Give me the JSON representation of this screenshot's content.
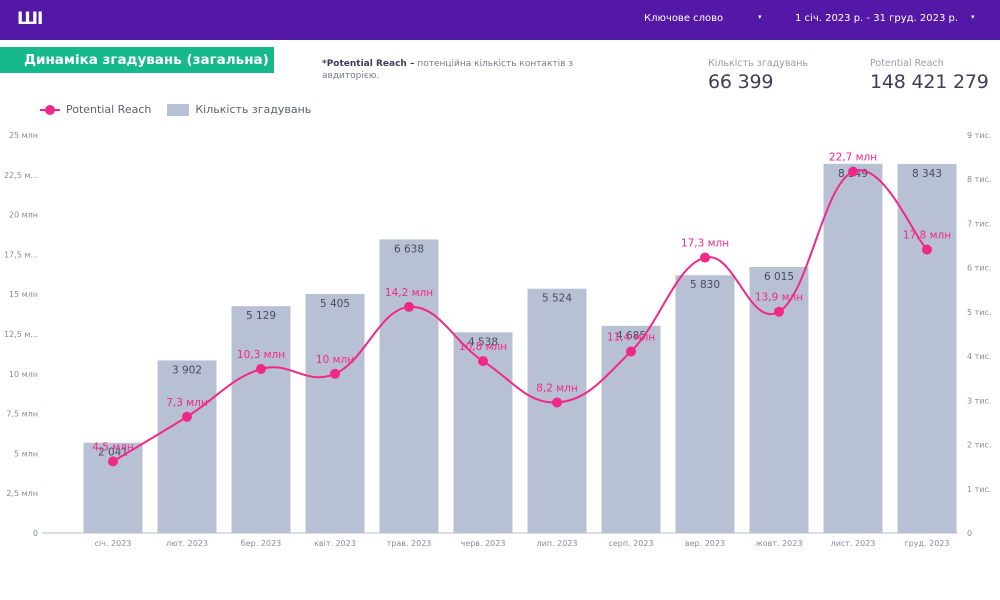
{
  "header": {
    "logo": "ШІ",
    "keyword_dropdown": {
      "label": "Ключове слово",
      "arrow": "▾"
    },
    "date_dropdown": {
      "label": "1 січ. 2023 р. - 31 груд. 2023 р.",
      "arrow": "▾"
    }
  },
  "section_title": "Динаміка згадувань (загальна)",
  "note": {
    "bold": "*Potential Reach –",
    "text": " потенційна кількість контактів з авдиторією."
  },
  "kpis": [
    {
      "label": "Кількість згадувань",
      "value": "66 399"
    },
    {
      "label": "Potential Reach",
      "value": "148 421 279"
    }
  ],
  "colors": {
    "header": "#5319a6",
    "title_bg": "#16b989",
    "line": "#f0288a",
    "bar": "#b8c1d4"
  },
  "chart_data": {
    "type": "bar",
    "title": "Динаміка згадувань (загальна)",
    "legend": [
      "Potential Reach",
      "Кількість згадувань"
    ],
    "legend_position": "top-left",
    "categories": [
      "січ. 2023",
      "лют. 2023",
      "бер. 2023",
      "квіт. 2023",
      "трав. 2023",
      "черв. 2023",
      "лип. 2023",
      "серп. 2023",
      "вер. 2023",
      "жовт. 2023",
      "лист. 2023",
      "груд. 2023"
    ],
    "series": [
      {
        "name": "Кількість згадувань",
        "type": "bar",
        "axis": "right",
        "values": [
          2041,
          3902,
          5129,
          5405,
          6638,
          4538,
          5524,
          4685,
          5830,
          6015,
          8349,
          8343
        ],
        "labels": [
          "2 041",
          "3 902",
          "5 129",
          "5 405",
          "6 638",
          "4 538",
          "5 524",
          "4 685",
          "5 830",
          "6 015",
          "8 349",
          "8 343"
        ]
      },
      {
        "name": "Potential Reach",
        "type": "line",
        "axis": "left",
        "values": [
          4.5,
          7.3,
          10.3,
          10.0,
          14.2,
          10.8,
          8.2,
          11.4,
          17.3,
          13.9,
          22.7,
          17.8
        ],
        "labels": [
          "4,5 млн",
          "7,3 млн",
          "10,3 млн",
          "10 млн",
          "14,2 млн",
          "10,8 млн",
          "8,2 млн",
          "11,4 млн",
          "17,3 млн",
          "13,9 млн",
          "22,7 млн",
          "17,8 млн"
        ]
      }
    ],
    "left_axis": {
      "ylim": [
        0,
        25
      ],
      "ticks": [
        0,
        2.5,
        5,
        7.5,
        10,
        12.5,
        15,
        17.5,
        20,
        22.5,
        25
      ],
      "tick_labels": [
        "0",
        "2,5 млн",
        "5 млн",
        "7,5 млн",
        "10 млн",
        "12,5 м...",
        "15 млн",
        "17,5 м...",
        "20 млн",
        "22,5 м...",
        "25 млн"
      ]
    },
    "right_axis": {
      "ylim": [
        0,
        9000
      ],
      "ticks": [
        0,
        1000,
        2000,
        3000,
        4000,
        5000,
        6000,
        7000,
        8000,
        9000
      ],
      "tick_labels": [
        "0",
        "1 тис.",
        "2 тис.",
        "3 тис.",
        "4 тис.",
        "5 тис.",
        "6 тис.",
        "7 тис.",
        "8 тис.",
        "9 тис."
      ]
    },
    "grid": false
  }
}
